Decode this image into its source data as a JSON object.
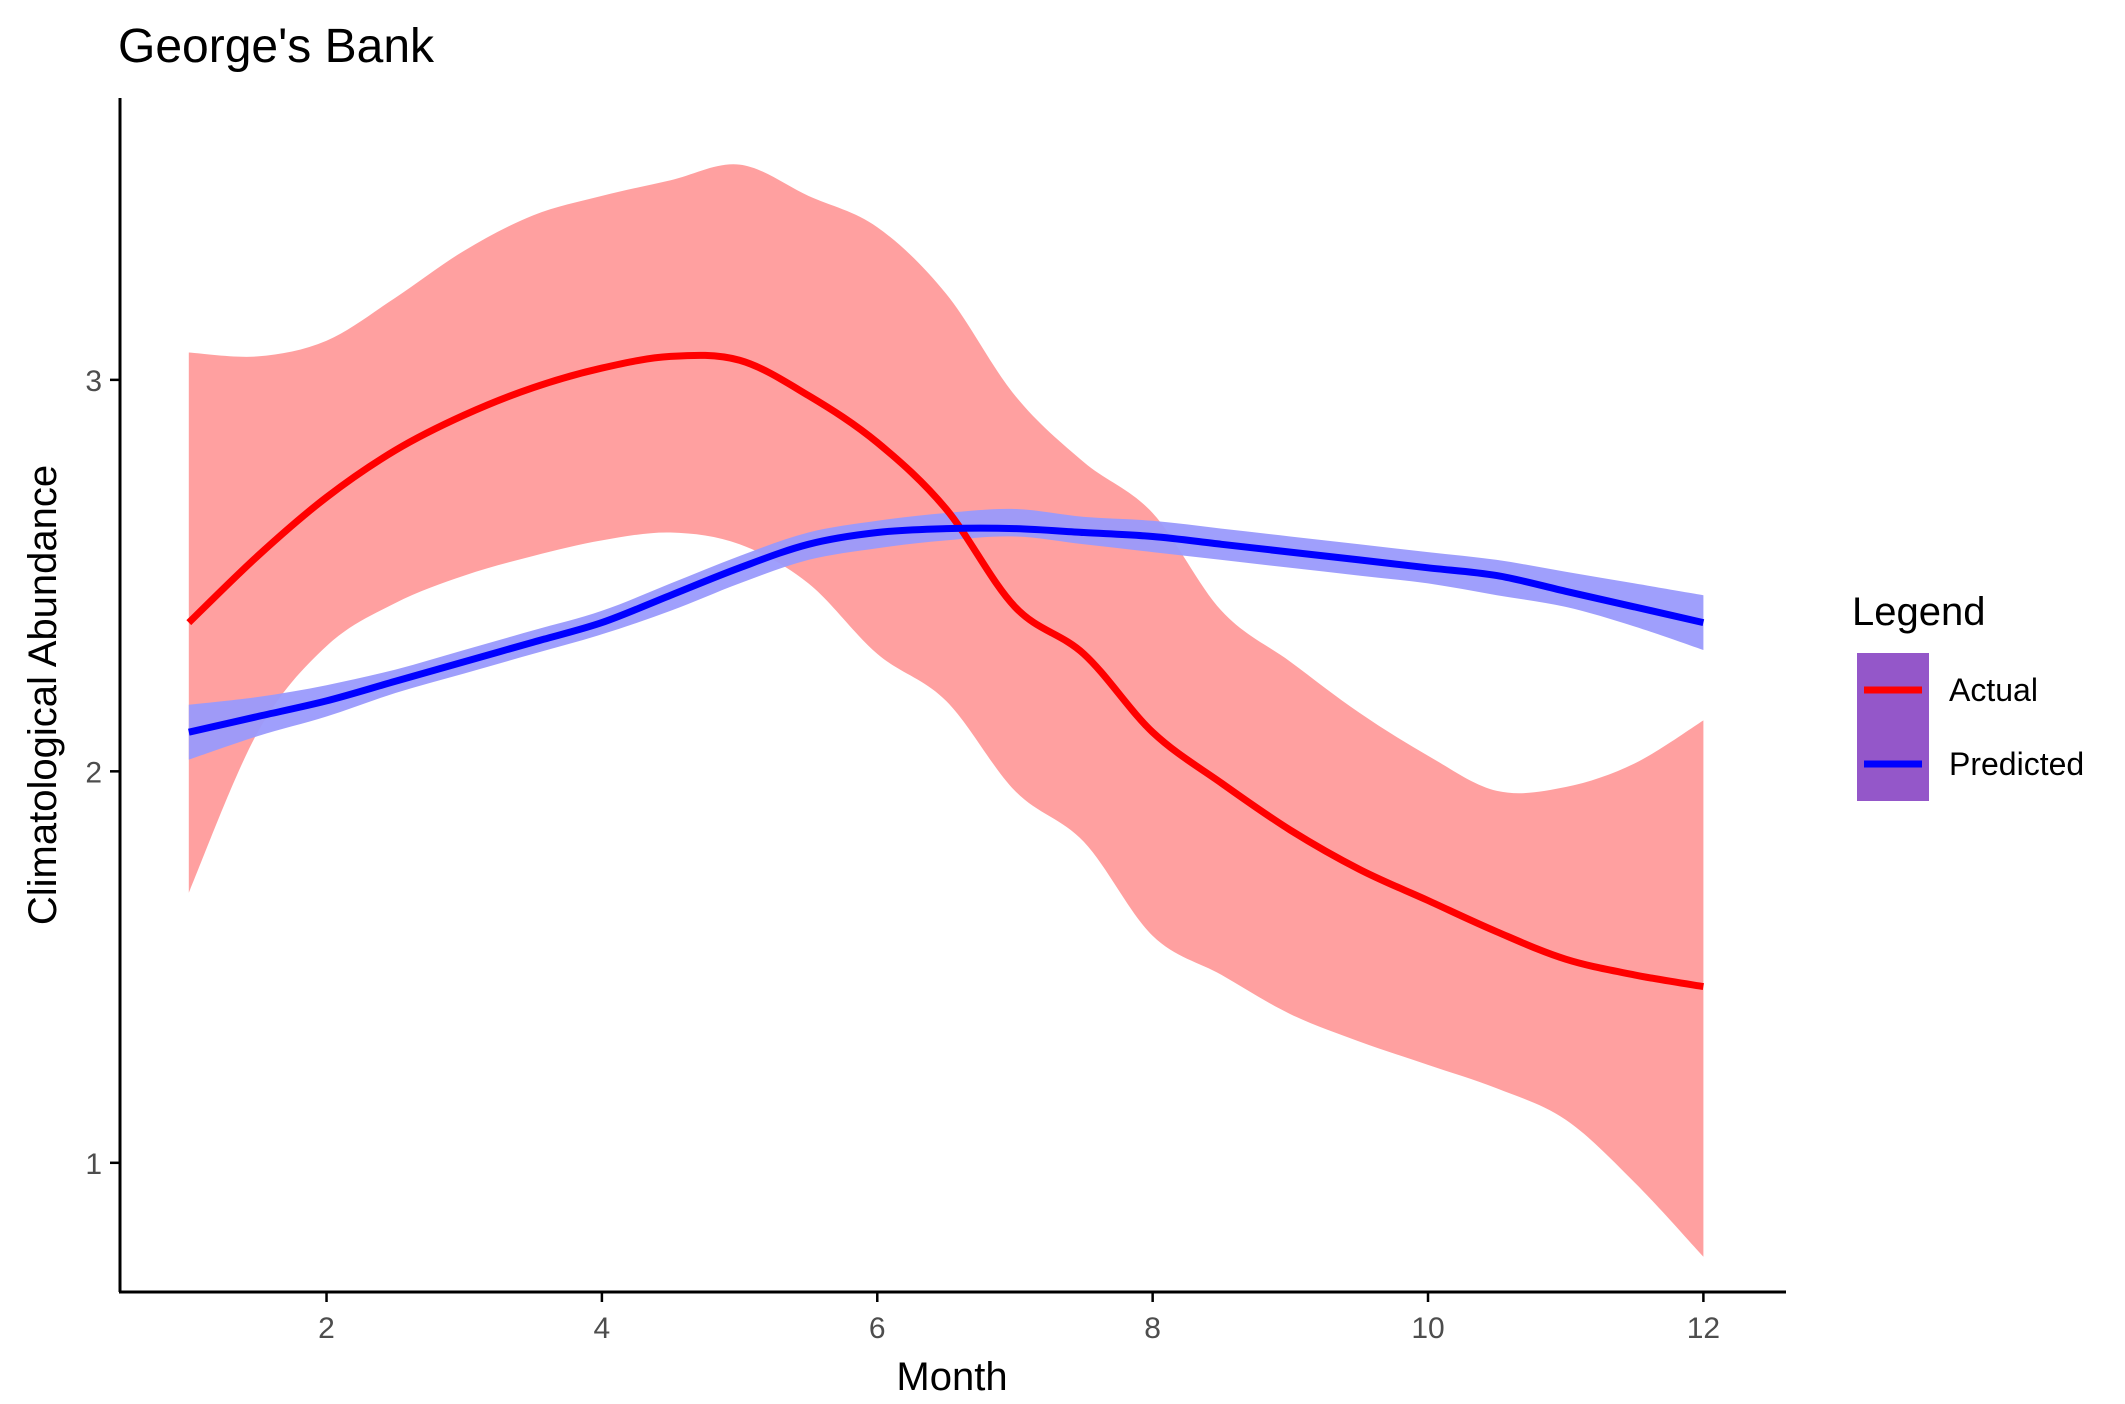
{
  "chart_data": {
    "type": "line",
    "title": "George's Bank",
    "xlabel": "Month",
    "ylabel": "Climatological Abundance",
    "xlim": [
      0.5,
      12.6
    ],
    "ylim": [
      0.67,
      3.72
    ],
    "xticks": [
      2,
      4,
      6,
      8,
      10,
      12
    ],
    "yticks": [
      1,
      2,
      3
    ],
    "grid": false,
    "legend": {
      "title": "Legend",
      "position": "right",
      "entries": [
        "Actual",
        "Predicted"
      ]
    },
    "series": [
      {
        "name": "Actual",
        "color": "#ff0000",
        "band_color": "#ff9b9b",
        "x": [
          1,
          1.5,
          2,
          2.5,
          3,
          3.5,
          4,
          4.5,
          5,
          5.5,
          6,
          6.5,
          7,
          7.5,
          8,
          8.5,
          9,
          9.5,
          10,
          10.5,
          11,
          11.5,
          12
        ],
        "y": [
          2.38,
          2.55,
          2.7,
          2.82,
          2.91,
          2.98,
          3.03,
          3.06,
          3.05,
          2.96,
          2.84,
          2.67,
          2.42,
          2.3,
          2.1,
          1.97,
          1.85,
          1.75,
          1.67,
          1.59,
          1.52,
          1.48,
          1.45
        ],
        "lower": [
          1.69,
          2.1,
          2.32,
          2.43,
          2.5,
          2.55,
          2.59,
          2.61,
          2.58,
          2.48,
          2.3,
          2.18,
          1.95,
          1.82,
          1.58,
          1.48,
          1.38,
          1.31,
          1.25,
          1.19,
          1.11,
          0.95,
          0.76
        ],
        "upper": [
          3.07,
          3.06,
          3.1,
          3.21,
          3.33,
          3.42,
          3.47,
          3.51,
          3.55,
          3.47,
          3.39,
          3.22,
          2.96,
          2.79,
          2.66,
          2.41,
          2.28,
          2.15,
          2.04,
          1.95,
          1.96,
          2.02,
          2.13
        ]
      },
      {
        "name": "Predicted",
        "color": "#0000ff",
        "band_color": "#9a9afc",
        "x": [
          1,
          1.5,
          2,
          2.5,
          3,
          3.5,
          4,
          4.5,
          5,
          5.5,
          6,
          6.5,
          7,
          7.5,
          8,
          8.5,
          9,
          9.5,
          10,
          10.5,
          11,
          11.5,
          12
        ],
        "y": [
          2.1,
          2.14,
          2.18,
          2.23,
          2.28,
          2.33,
          2.38,
          2.45,
          2.52,
          2.58,
          2.61,
          2.62,
          2.62,
          2.61,
          2.6,
          2.58,
          2.56,
          2.54,
          2.52,
          2.5,
          2.46,
          2.42,
          2.38
        ],
        "lower": [
          2.03,
          2.09,
          2.14,
          2.2,
          2.25,
          2.3,
          2.35,
          2.41,
          2.48,
          2.54,
          2.57,
          2.59,
          2.6,
          2.58,
          2.56,
          2.54,
          2.52,
          2.5,
          2.48,
          2.45,
          2.42,
          2.37,
          2.31
        ],
        "upper": [
          2.17,
          2.19,
          2.22,
          2.26,
          2.31,
          2.36,
          2.41,
          2.48,
          2.55,
          2.61,
          2.64,
          2.66,
          2.67,
          2.65,
          2.64,
          2.62,
          2.6,
          2.58,
          2.56,
          2.54,
          2.51,
          2.48,
          2.45
        ]
      }
    ]
  }
}
